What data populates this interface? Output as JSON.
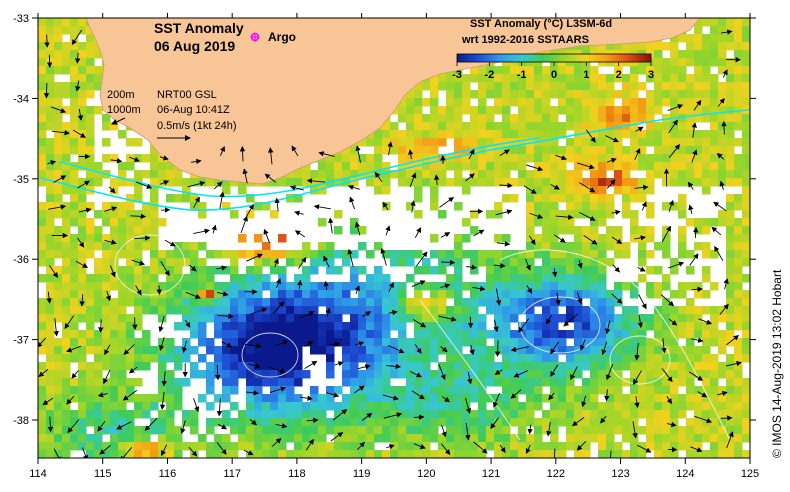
{
  "title": {
    "line1": "SST Anomaly",
    "line2": "06 Aug 2019"
  },
  "argo_label": "Argo",
  "colorbar": {
    "title_line1": "SST Anomaly (°C) L3SM-6d",
    "title_line2": "wrt 1992-2016 SSTAARS",
    "ticks": [
      "-3",
      "-2",
      "-1",
      "0",
      "1",
      "2",
      "3"
    ],
    "stops": [
      "#0a1a8c",
      "#1f4fd6",
      "#2f9ae8",
      "#38c7d2",
      "#3ecb5a",
      "#9ad62a",
      "#f1d21f",
      "#f29a14",
      "#d94a10",
      "#8a0f08"
    ]
  },
  "legend": {
    "depth1": "200m",
    "depth2": "1000m",
    "line1": "NRT00 GSL",
    "line2": "06-Aug 10:41Z",
    "line3": "0.5m/s (1kt 24h)"
  },
  "axes": {
    "lon_ticks": [
      "114",
      "115",
      "116",
      "117",
      "118",
      "119",
      "120",
      "121",
      "122",
      "123",
      "124",
      "125"
    ],
    "lat_ticks": [
      "-33",
      "-34",
      "-35",
      "-36",
      "-37",
      "-38"
    ]
  },
  "credit": "© IMOS 14-Aug-2019 13:02 Hobart",
  "colors": {
    "land": "#f8c596",
    "no_data": "#ffffff",
    "current_line": "#00e5ff",
    "argo_marker": "#ff00ff"
  }
}
